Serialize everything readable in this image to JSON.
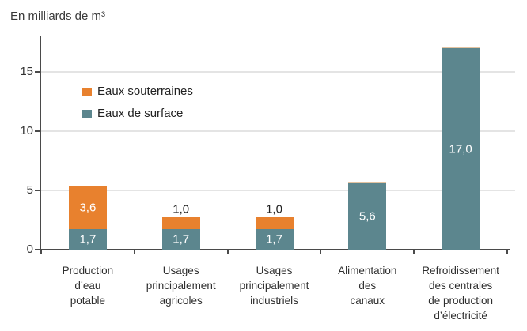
{
  "title": "En milliards de m³",
  "colors": {
    "souterraines": "#E8812E",
    "surface": "#5C868E",
    "thin_cap": "#E3C3A1",
    "grid": "#E4E4E4",
    "axis": "#4A4A4A",
    "label_inside": "#FFFFFF",
    "label_outside": "#222222"
  },
  "legend": {
    "items": [
      {
        "label": "Eaux souterraines",
        "color_key": "souterraines"
      },
      {
        "label": "Eaux de surface",
        "color_key": "surface"
      }
    ]
  },
  "chart_data": {
    "type": "bar",
    "stacked": true,
    "title": "En milliards de m³",
    "ylabel": "En milliards de m³",
    "xlabel": "",
    "ylim": [
      0,
      18
    ],
    "yticks": [
      0,
      5,
      10,
      15
    ],
    "grid": true,
    "legend_position": "inside-upper-left",
    "categories": [
      "Production\nd’eau\npotable",
      "Usages\nprincipalement\nagricoles",
      "Usages\nprincipalement\nindustriels",
      "Alimentation\ndes\ncanaux",
      "Refroidissement\ndes centrales\nde production\nd’électricité"
    ],
    "series": [
      {
        "name": "Eaux de surface",
        "color_key": "surface",
        "values": [
          1.7,
          1.7,
          1.7,
          5.6,
          17.0
        ],
        "labels": [
          "1,7",
          "1,7",
          "1,7",
          "5,6",
          "17,0"
        ],
        "label_pos": [
          "inside",
          "inside",
          "inside",
          "inside",
          "inside"
        ]
      },
      {
        "name": "Eaux souterraines",
        "color_key": "souterraines",
        "values": [
          3.6,
          1.0,
          1.0,
          0.1,
          0.1
        ],
        "labels": [
          "3,6",
          "1,0",
          "1,0",
          null,
          null
        ],
        "label_pos": [
          "inside",
          "above",
          "above",
          null,
          null
        ]
      }
    ]
  }
}
